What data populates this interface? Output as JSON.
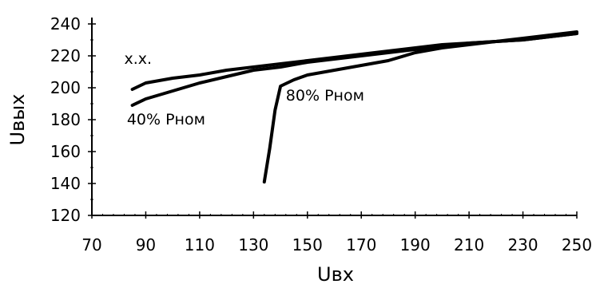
{
  "chart_data": {
    "type": "line",
    "title": "",
    "xlabel": "Uвх",
    "ylabel": "Uвых",
    "xlim": [
      70,
      250
    ],
    "ylim": [
      120,
      240
    ],
    "x_ticks": [
      70,
      90,
      110,
      130,
      150,
      170,
      190,
      210,
      230,
      250
    ],
    "y_ticks": [
      120,
      140,
      160,
      180,
      200,
      220,
      240
    ],
    "grid": false,
    "legend": "none",
    "series": [
      {
        "name": "х.х.",
        "color": "#000000",
        "x": [
          85,
          90,
          100,
          110,
          120,
          130,
          140,
          150,
          160,
          170,
          180,
          190,
          200,
          210,
          220,
          230,
          240,
          250
        ],
        "y": [
          199,
          203,
          206,
          208,
          211,
          213,
          215,
          217,
          219,
          221,
          223,
          225,
          227,
          228,
          229,
          230,
          232,
          234
        ]
      },
      {
        "name": "40% Pном",
        "color": "#000000",
        "x": [
          85,
          90,
          100,
          110,
          120,
          130,
          140,
          150,
          160,
          170,
          180,
          190,
          200,
          210,
          220,
          230,
          240,
          250
        ],
        "y": [
          189,
          193,
          198,
          203,
          207,
          211,
          213,
          216,
          218,
          220,
          222,
          224,
          226,
          228,
          229,
          230,
          232,
          234
        ]
      },
      {
        "name": "80% Pном",
        "color": "#000000",
        "x": [
          134,
          136,
          138,
          140,
          145,
          150,
          160,
          170,
          180,
          190,
          200,
          210,
          220,
          230,
          240,
          250
        ],
        "y": [
          141,
          162,
          186,
          201,
          205,
          208,
          211,
          214,
          217,
          222,
          225,
          227,
          229,
          231,
          233,
          235
        ]
      }
    ],
    "annotations": [
      {
        "text": "х.х.",
        "x": 82,
        "y": 215
      },
      {
        "text": "40% Pном",
        "x": 83,
        "y": 177
      },
      {
        "text": "80% Pном",
        "x": 142,
        "y": 192
      }
    ]
  }
}
